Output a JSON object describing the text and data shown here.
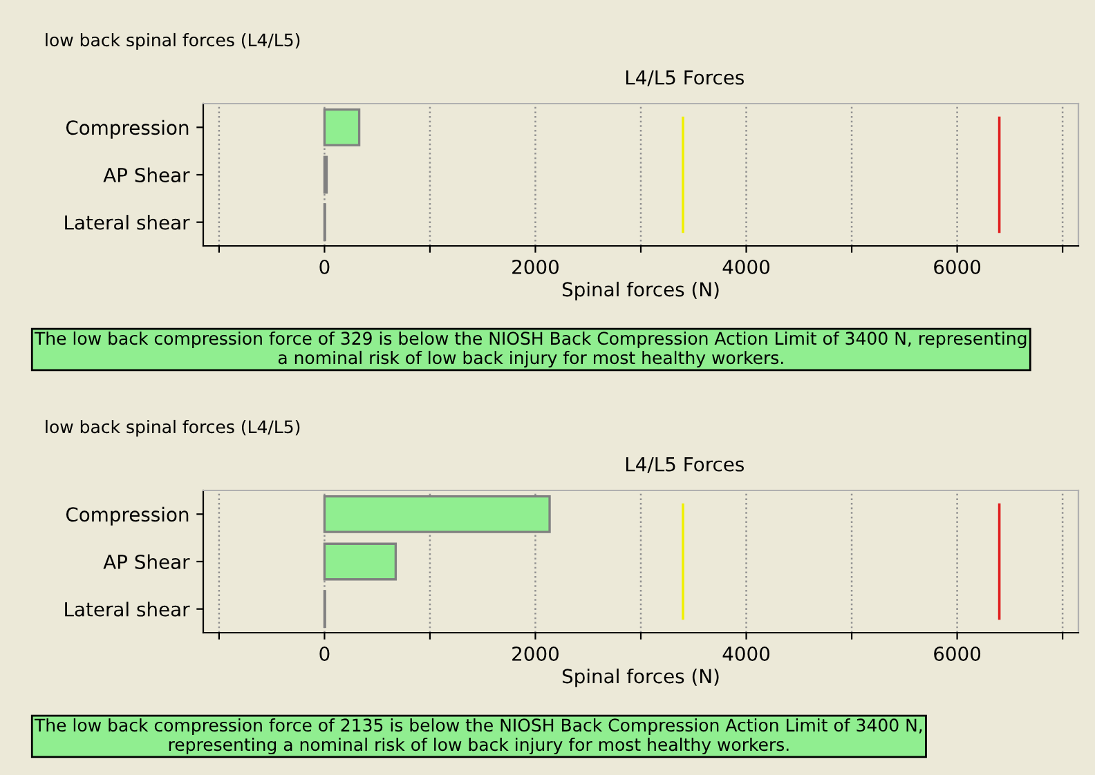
{
  "chart_data": [
    {
      "type": "bar",
      "subtitle": "low back spinal forces (L4/L5)",
      "title": "L4/L5 Forces",
      "xlabel": "Spinal forces (N)",
      "orientation": "horizontal",
      "categories": [
        "Compression",
        "AP Shear",
        "Lateral shear"
      ],
      "series": [
        {
          "color": "#90ee90",
          "values": [
            329,
            20,
            5
          ]
        }
      ],
      "xlim": [
        -1150,
        7150
      ],
      "xticks": [
        {
          "value": -1000,
          "label": null
        },
        0,
        {
          "value": 1000,
          "label": null
        },
        2000,
        {
          "value": 3000,
          "label": null
        },
        4000,
        {
          "value": 5000,
          "label": null
        },
        6000,
        {
          "value": 7000,
          "label": null
        }
      ],
      "grid": "x",
      "ref_lines": [
        {
          "axis": "x",
          "value": 3400,
          "label": null,
          "color": "#f0f000"
        },
        {
          "axis": "x",
          "value": 6400,
          "label": null,
          "color": "#e02020"
        }
      ],
      "annotations": [
        "The low back compression force of 329 is below the NIOSH Back Compression Action Limit of 3400 N, representing\na nominal risk of low back injury for most healthy workers."
      ]
    },
    {
      "type": "bar",
      "subtitle": "low back spinal forces (L4/L5)",
      "title": "L4/L5 Forces",
      "xlabel": "Spinal forces (N)",
      "orientation": "horizontal",
      "categories": [
        "Compression",
        "AP Shear",
        "Lateral shear"
      ],
      "series": [
        {
          "color": "#90ee90",
          "values": [
            2135,
            675,
            5
          ]
        }
      ],
      "xlim": [
        -1150,
        7150
      ],
      "xticks": [
        {
          "value": -1000,
          "label": null
        },
        0,
        {
          "value": 1000,
          "label": null
        },
        2000,
        {
          "value": 3000,
          "label": null
        },
        4000,
        {
          "value": 5000,
          "label": null
        },
        6000,
        {
          "value": 7000,
          "label": null
        }
      ],
      "grid": "x",
      "ref_lines": [
        {
          "axis": "x",
          "value": 3400,
          "label": null,
          "color": "#f0f000"
        },
        {
          "axis": "x",
          "value": 6400,
          "label": null,
          "color": "#e02020"
        }
      ],
      "annotations": [
        "The low back compression force of 2135 is below the NIOSH Back Compression Action Limit of 3400 N,\nrepresenting a nominal risk of low back injury for most healthy workers."
      ]
    }
  ]
}
